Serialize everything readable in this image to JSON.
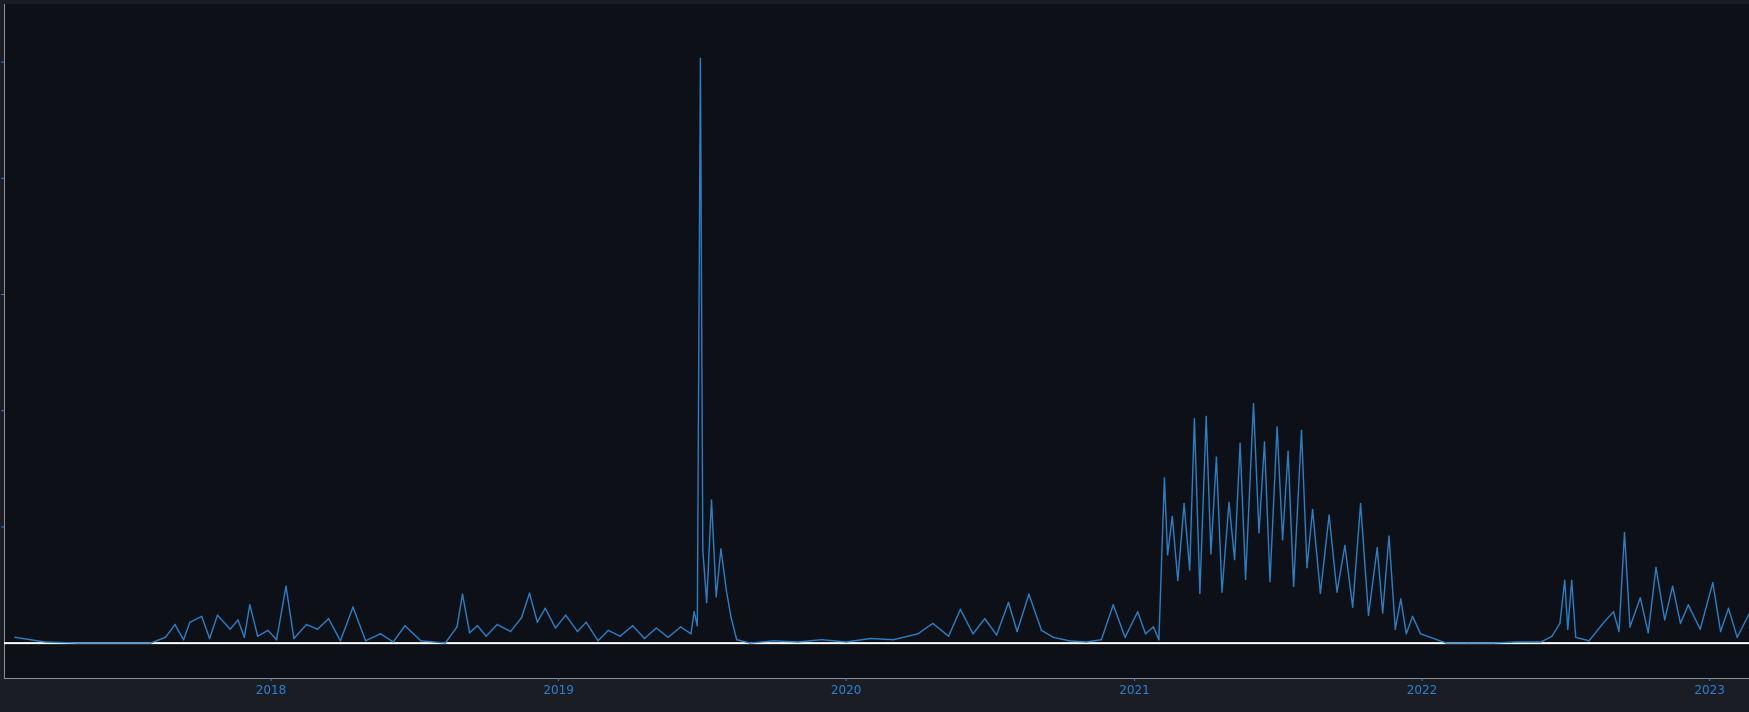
{
  "colors": {
    "background": "#1a1d24",
    "plot_background": "#0d1017",
    "series_line": "#2b7fc4",
    "baseline": "#ffffff",
    "tick_label": "#2f7fd1",
    "axis_frame": "#8a8f99"
  },
  "chart_data": {
    "type": "line",
    "title": "",
    "xlabel": "",
    "ylabel": "",
    "x_axis_type": "date",
    "xlim": [
      "2017-01-27",
      "2023-02-20"
    ],
    "ylim": [
      -3,
      55
    ],
    "x_tick_labels": [
      "2018",
      "2019",
      "2020",
      "2021",
      "2022",
      "2023"
    ],
    "y_ticks_visible": [
      10,
      20,
      30,
      40,
      50
    ],
    "y_tick_labels_visible": false,
    "baseline_y": 0,
    "grid": false,
    "legend": "none",
    "series": [
      {
        "points": [
          [
            "2017-02-10",
            0.5
          ],
          [
            "2017-03-20",
            0.1
          ],
          [
            "2017-05-01",
            0
          ],
          [
            "2017-08-01",
            0
          ],
          [
            "2017-08-20",
            0.5
          ],
          [
            "2017-09-01",
            1.6
          ],
          [
            "2017-09-05",
            1.1
          ],
          [
            "2017-09-12",
            0.3
          ],
          [
            "2017-09-20",
            1.8
          ],
          [
            "2017-10-05",
            2.3
          ],
          [
            "2017-10-15",
            0.4
          ],
          [
            "2017-10-25",
            2.4
          ],
          [
            "2017-11-10",
            1.2
          ],
          [
            "2017-11-20",
            2.0
          ],
          [
            "2017-11-28",
            0.5
          ],
          [
            "2017-12-05",
            3.3
          ],
          [
            "2017-12-15",
            0.6
          ],
          [
            "2017-12-28",
            1.1
          ],
          [
            "2018-01-08",
            0.3
          ],
          [
            "2018-01-20",
            4.9
          ],
          [
            "2018-01-30",
            0.4
          ],
          [
            "2018-02-15",
            1.6
          ],
          [
            "2018-03-01",
            1.2
          ],
          [
            "2018-03-15",
            2.1
          ],
          [
            "2018-03-30",
            0.2
          ],
          [
            "2018-04-15",
            3.1
          ],
          [
            "2018-05-01",
            0.2
          ],
          [
            "2018-05-20",
            0.8
          ],
          [
            "2018-06-05",
            0.1
          ],
          [
            "2018-06-20",
            1.5
          ],
          [
            "2018-07-10",
            0.2
          ],
          [
            "2018-08-10",
            0
          ],
          [
            "2018-08-25",
            1.4
          ],
          [
            "2018-09-01",
            4.2
          ],
          [
            "2018-09-10",
            0.9
          ],
          [
            "2018-09-20",
            1.5
          ],
          [
            "2018-10-01",
            0.6
          ],
          [
            "2018-10-15",
            1.6
          ],
          [
            "2018-11-01",
            1.0
          ],
          [
            "2018-11-15",
            2.2
          ],
          [
            "2018-11-25",
            4.3
          ],
          [
            "2018-12-05",
            1.8
          ],
          [
            "2018-12-15",
            3.0
          ],
          [
            "2018-12-28",
            1.3
          ],
          [
            "2019-01-10",
            2.4
          ],
          [
            "2019-01-25",
            1.0
          ],
          [
            "2019-02-05",
            1.8
          ],
          [
            "2019-02-20",
            0.2
          ],
          [
            "2019-03-05",
            1.1
          ],
          [
            "2019-03-20",
            0.6
          ],
          [
            "2019-04-05",
            1.5
          ],
          [
            "2019-04-20",
            0.4
          ],
          [
            "2019-05-05",
            1.3
          ],
          [
            "2019-05-20",
            0.5
          ],
          [
            "2019-06-05",
            1.4
          ],
          [
            "2019-06-18",
            0.8
          ],
          [
            "2019-06-22",
            2.7
          ],
          [
            "2019-06-26",
            1.5
          ],
          [
            "2019-06-30",
            50.3
          ],
          [
            "2019-07-03",
            8.0
          ],
          [
            "2019-07-08",
            3.5
          ],
          [
            "2019-07-14",
            12.3
          ],
          [
            "2019-07-20",
            4.0
          ],
          [
            "2019-07-26",
            8.1
          ],
          [
            "2019-08-02",
            4.5
          ],
          [
            "2019-08-08",
            2.2
          ],
          [
            "2019-08-15",
            0.3
          ],
          [
            "2019-09-01",
            0
          ],
          [
            "2019-10-01",
            0.2
          ],
          [
            "2019-11-01",
            0.1
          ],
          [
            "2019-12-01",
            0.3
          ],
          [
            "2020-01-01",
            0.1
          ],
          [
            "2020-02-01",
            0.4
          ],
          [
            "2020-03-01",
            0.3
          ],
          [
            "2020-04-01",
            0.8
          ],
          [
            "2020-04-20",
            1.7
          ],
          [
            "2020-05-10",
            0.6
          ],
          [
            "2020-05-25",
            2.9
          ],
          [
            "2020-06-10",
            0.8
          ],
          [
            "2020-06-25",
            2.1
          ],
          [
            "2020-07-10",
            0.7
          ],
          [
            "2020-07-25",
            3.5
          ],
          [
            "2020-08-05",
            1.0
          ],
          [
            "2020-08-20",
            4.2
          ],
          [
            "2020-09-05",
            1.1
          ],
          [
            "2020-09-20",
            0.5
          ],
          [
            "2020-10-10",
            0.2
          ],
          [
            "2020-11-01",
            0.1
          ],
          [
            "2020-11-20",
            0.3
          ],
          [
            "2020-12-05",
            3.3
          ],
          [
            "2020-12-20",
            0.5
          ],
          [
            "2021-01-05",
            2.7
          ],
          [
            "2021-01-15",
            0.8
          ],
          [
            "2021-01-25",
            1.4
          ],
          [
            "2021-02-01",
            0.3
          ],
          [
            "2021-02-08",
            14.2
          ],
          [
            "2021-02-12",
            7.6
          ],
          [
            "2021-02-18",
            10.9
          ],
          [
            "2021-02-25",
            5.4
          ],
          [
            "2021-03-05",
            12.0
          ],
          [
            "2021-03-12",
            6.3
          ],
          [
            "2021-03-18",
            19.3
          ],
          [
            "2021-03-25",
            4.3
          ],
          [
            "2021-04-02",
            19.5
          ],
          [
            "2021-04-08",
            7.7
          ],
          [
            "2021-04-15",
            16.0
          ],
          [
            "2021-04-22",
            4.4
          ],
          [
            "2021-05-01",
            12.1
          ],
          [
            "2021-05-08",
            7.2
          ],
          [
            "2021-05-15",
            17.2
          ],
          [
            "2021-05-22",
            5.5
          ],
          [
            "2021-06-01",
            20.6
          ],
          [
            "2021-06-08",
            9.5
          ],
          [
            "2021-06-15",
            17.3
          ],
          [
            "2021-06-22",
            5.3
          ],
          [
            "2021-07-01",
            18.6
          ],
          [
            "2021-07-08",
            8.9
          ],
          [
            "2021-07-15",
            16.5
          ],
          [
            "2021-07-22",
            4.9
          ],
          [
            "2021-08-01",
            18.3
          ],
          [
            "2021-08-08",
            6.5
          ],
          [
            "2021-08-15",
            11.5
          ],
          [
            "2021-08-25",
            4.3
          ],
          [
            "2021-09-05",
            11.0
          ],
          [
            "2021-09-15",
            4.4
          ],
          [
            "2021-09-25",
            8.4
          ],
          [
            "2021-10-05",
            3.1
          ],
          [
            "2021-10-15",
            12.0
          ],
          [
            "2021-10-25",
            2.4
          ],
          [
            "2021-11-05",
            8.2
          ],
          [
            "2021-11-12",
            2.6
          ],
          [
            "2021-11-20",
            9.2
          ],
          [
            "2021-11-28",
            1.2
          ],
          [
            "2021-12-05",
            3.8
          ],
          [
            "2021-12-12",
            0.8
          ],
          [
            "2021-12-20",
            2.3
          ],
          [
            "2021-12-30",
            0.8
          ],
          [
            "2022-02-01",
            0
          ],
          [
            "2022-03-01",
            0
          ],
          [
            "2022-04-01",
            0
          ],
          [
            "2022-05-01",
            0.1
          ],
          [
            "2022-06-01",
            0.1
          ],
          [
            "2022-06-15",
            0.6
          ],
          [
            "2022-06-25",
            1.7
          ],
          [
            "2022-07-01",
            5.4
          ],
          [
            "2022-07-05",
            1.2
          ],
          [
            "2022-07-10",
            5.4
          ],
          [
            "2022-07-15",
            0.5
          ],
          [
            "2022-08-01",
            0.2
          ],
          [
            "2022-08-20",
            1.8
          ],
          [
            "2022-09-01",
            2.7
          ],
          [
            "2022-09-08",
            1.0
          ],
          [
            "2022-09-15",
            9.5
          ],
          [
            "2022-09-22",
            1.4
          ],
          [
            "2022-10-05",
            3.9
          ],
          [
            "2022-10-15",
            0.9
          ],
          [
            "2022-10-25",
            6.5
          ],
          [
            "2022-11-05",
            2.0
          ],
          [
            "2022-11-15",
            4.9
          ],
          [
            "2022-11-25",
            1.7
          ],
          [
            "2022-12-05",
            3.3
          ],
          [
            "2022-12-20",
            1.2
          ],
          [
            "2023-01-05",
            5.2
          ],
          [
            "2023-01-15",
            1.0
          ],
          [
            "2023-01-25",
            3.0
          ],
          [
            "2023-02-05",
            0.5
          ],
          [
            "2023-02-20",
            2.5
          ]
        ]
      }
    ]
  }
}
